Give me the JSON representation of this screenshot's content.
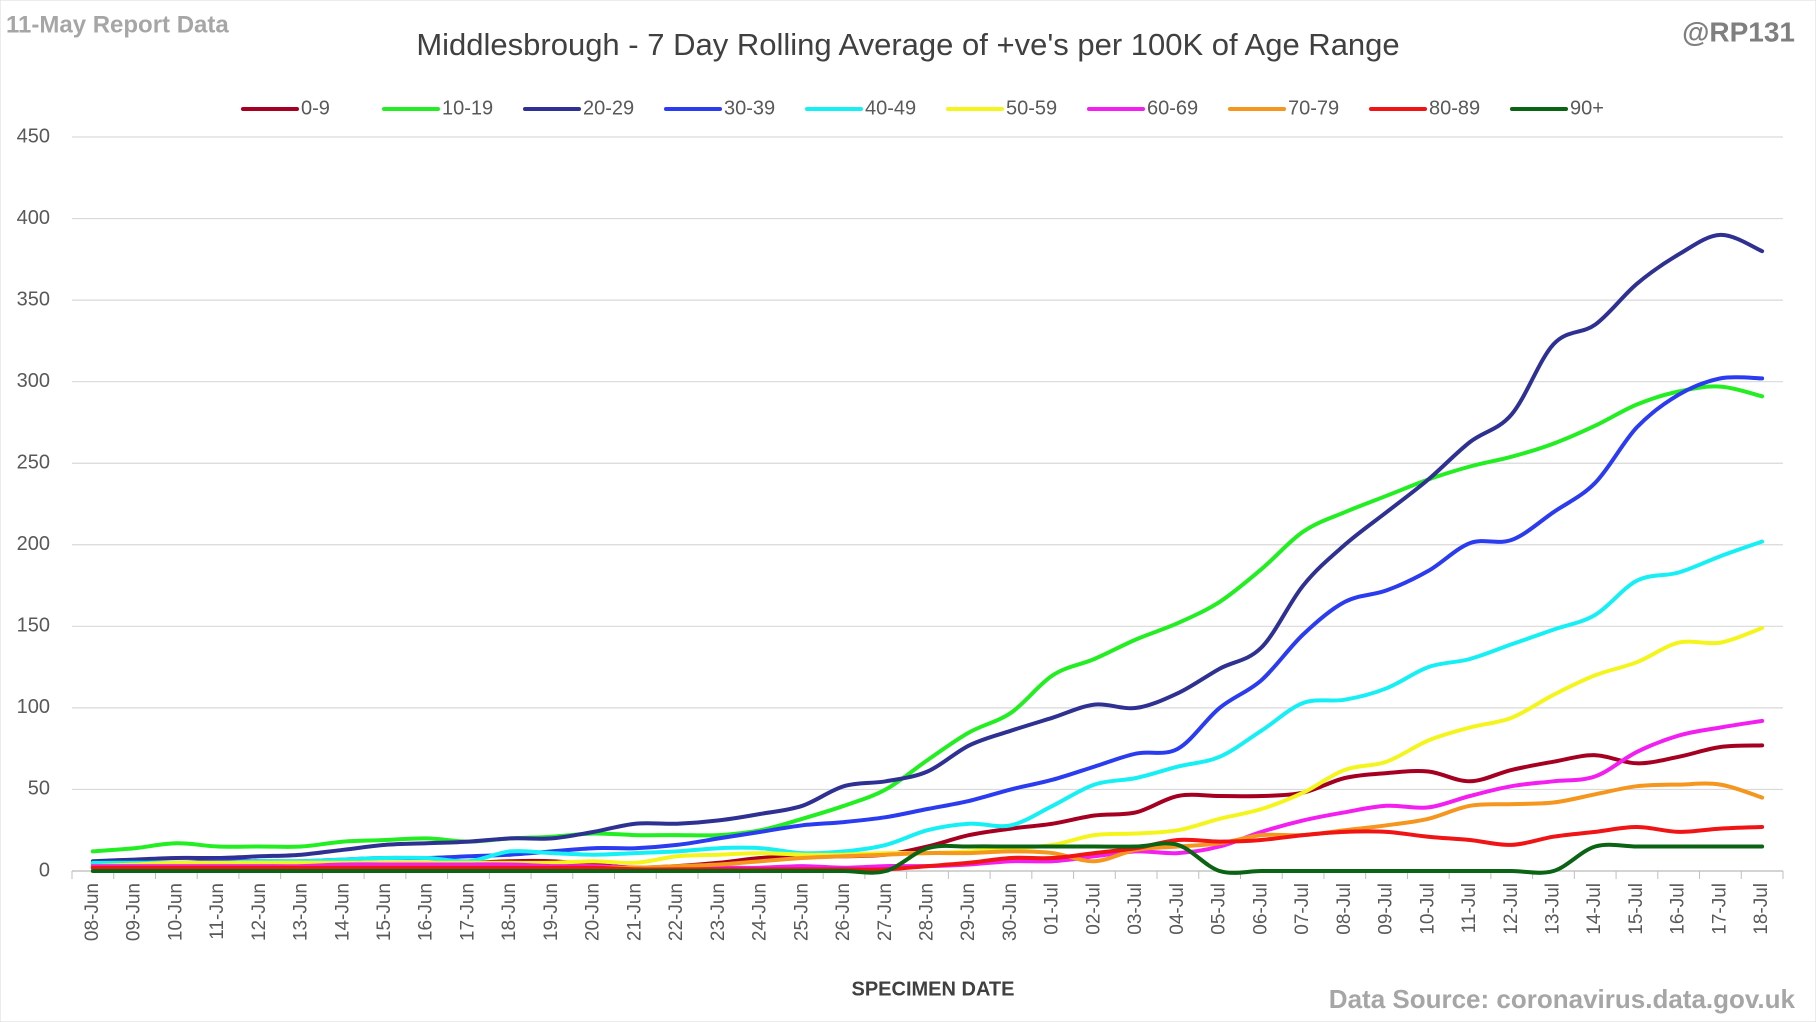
{
  "chart_data": {
    "type": "line",
    "title": "Middlesbrough - 7 Day Rolling Average of +ve's per 100K of Age Range",
    "report_label": "11-May Report Data",
    "handle": "@RP131",
    "source": "Data Source: coronavirus.data.gov.uk",
    "xlabel": "SPECIMEN DATE",
    "grid": true,
    "legend": "top",
    "ylim": [
      0,
      450
    ],
    "yticks": [
      0,
      50,
      100,
      150,
      200,
      250,
      300,
      350,
      400,
      450
    ],
    "categories": [
      "08-Jun",
      "09-Jun",
      "10-Jun",
      "11-Jun",
      "12-Jun",
      "13-Jun",
      "14-Jun",
      "15-Jun",
      "16-Jun",
      "17-Jun",
      "18-Jun",
      "19-Jun",
      "20-Jun",
      "21-Jun",
      "22-Jun",
      "23-Jun",
      "24-Jun",
      "25-Jun",
      "26-Jun",
      "27-Jun",
      "28-Jun",
      "29-Jun",
      "30-Jun",
      "01-Jul",
      "02-Jul",
      "03-Jul",
      "04-Jul",
      "05-Jul",
      "06-Jul",
      "07-Jul",
      "08-Jul",
      "09-Jul",
      "10-Jul",
      "11-Jul",
      "12-Jul",
      "13-Jul",
      "14-Jul",
      "15-Jul",
      "16-Jul",
      "17-Jul",
      "18-Jul"
    ],
    "series": [
      {
        "name": "0-9",
        "color": "#a50021",
        "values": [
          2,
          2,
          2,
          3,
          4,
          3,
          4,
          5,
          5,
          5,
          6,
          6,
          4,
          2,
          3,
          5,
          8,
          9,
          9,
          10,
          15,
          22,
          26,
          29,
          34,
          36,
          46,
          46,
          46,
          48,
          57,
          60,
          61,
          55,
          62,
          67,
          71,
          66,
          70,
          76,
          77
        ]
      },
      {
        "name": "10-19",
        "color": "#22ee22",
        "values": [
          12,
          14,
          17,
          15,
          15,
          15,
          18,
          19,
          20,
          18,
          20,
          21,
          23,
          22,
          22,
          22,
          25,
          32,
          40,
          50,
          68,
          85,
          97,
          120,
          130,
          142,
          152,
          165,
          185,
          208,
          220,
          230,
          240,
          248,
          254,
          262,
          273,
          286,
          294,
          297,
          291
        ]
      },
      {
        "name": "20-29",
        "color": "#2e3192",
        "values": [
          6,
          7,
          8,
          8,
          9,
          10,
          13,
          16,
          17,
          18,
          20,
          20,
          24,
          29,
          29,
          31,
          35,
          40,
          52,
          55,
          61,
          77,
          86,
          94,
          102,
          100,
          109,
          124,
          137,
          175,
          200,
          220,
          240,
          263,
          280,
          323,
          335,
          360,
          378,
          390,
          380
        ]
      },
      {
        "name": "30-39",
        "color": "#2a3bf0",
        "values": [
          4,
          5,
          5,
          6,
          6,
          6,
          7,
          8,
          8,
          9,
          10,
          12,
          14,
          14,
          16,
          20,
          24,
          28,
          30,
          33,
          38,
          43,
          50,
          56,
          64,
          72,
          75,
          100,
          117,
          145,
          165,
          172,
          184,
          201,
          203,
          220,
          238,
          272,
          292,
          302,
          302
        ]
      },
      {
        "name": "40-49",
        "color": "#16f0f5",
        "values": [
          5,
          5,
          5,
          5,
          6,
          6,
          7,
          8,
          8,
          6,
          12,
          11,
          10,
          11,
          12,
          14,
          14,
          11,
          12,
          16,
          25,
          29,
          28,
          40,
          53,
          57,
          64,
          70,
          86,
          103,
          105,
          112,
          125,
          130,
          139,
          148,
          157,
          178,
          183,
          193,
          202
        ]
      },
      {
        "name": "50-59",
        "color": "#f5f51e",
        "values": [
          3,
          4,
          5,
          5,
          5,
          5,
          5,
          5,
          5,
          5,
          5,
          5,
          6,
          5,
          9,
          10,
          11,
          10,
          10,
          11,
          11,
          12,
          14,
          16,
          22,
          23,
          25,
          32,
          38,
          48,
          62,
          67,
          80,
          88,
          94,
          108,
          120,
          128,
          140,
          140,
          149
        ]
      },
      {
        "name": "60-69",
        "color": "#f21ff0",
        "values": [
          3,
          3,
          3,
          3,
          3,
          3,
          4,
          4,
          4,
          4,
          4,
          3,
          3,
          2,
          2,
          2,
          2,
          3,
          2,
          3,
          3,
          4,
          6,
          6,
          9,
          12,
          11,
          15,
          24,
          31,
          36,
          40,
          39,
          46,
          52,
          55,
          58,
          73,
          83,
          88,
          92
        ]
      },
      {
        "name": "70-79",
        "color": "#f5961e",
        "values": [
          2,
          2,
          2,
          2,
          2,
          2,
          2,
          2,
          2,
          2,
          2,
          2,
          2,
          2,
          3,
          4,
          6,
          8,
          9,
          10,
          11,
          11,
          12,
          11,
          6,
          13,
          15,
          17,
          22,
          22,
          25,
          28,
          32,
          40,
          41,
          42,
          47,
          52,
          53,
          53,
          45
        ]
      },
      {
        "name": "80-89",
        "color": "#f01414",
        "values": [
          2,
          2,
          2,
          2,
          2,
          2,
          2,
          2,
          2,
          2,
          2,
          2,
          2,
          1,
          1,
          1,
          1,
          1,
          1,
          1,
          3,
          5,
          8,
          8,
          11,
          14,
          19,
          18,
          19,
          22,
          24,
          24,
          21,
          19,
          16,
          21,
          24,
          27,
          24,
          26,
          27
        ]
      },
      {
        "name": "90+",
        "color": "#0a6414",
        "values": [
          0,
          0,
          0,
          0,
          0,
          0,
          0,
          0,
          0,
          0,
          0,
          0,
          0,
          0,
          0,
          0,
          0,
          0,
          0,
          0,
          14,
          15,
          15,
          15,
          15,
          15,
          16,
          0,
          0,
          0,
          0,
          0,
          0,
          0,
          0,
          0,
          15,
          15,
          15,
          15,
          15
        ]
      }
    ]
  }
}
